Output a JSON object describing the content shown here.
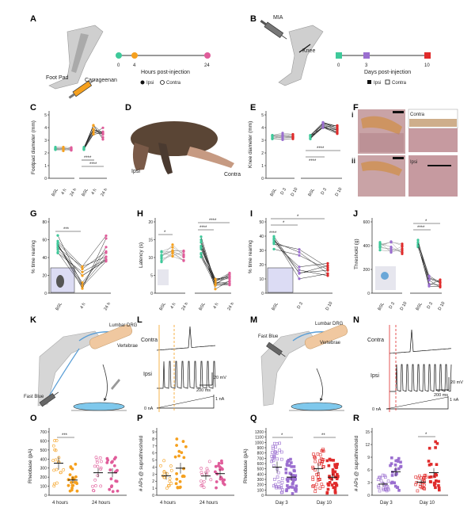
{
  "panel_letters": [
    "A",
    "B",
    "C",
    "D",
    "E",
    "F",
    "G",
    "H",
    "I",
    "J",
    "K",
    "L",
    "M",
    "N",
    "O",
    "P",
    "Q",
    "R"
  ],
  "panelA": {
    "foot_pad": "Foot Pad",
    "carrageenan": "Carrageenan",
    "ticks": [
      "0",
      "4",
      "24"
    ],
    "axis": "Hours post-injection",
    "ipsi": "Ipsi",
    "contra": "Contra"
  },
  "panelB": {
    "mia": "MIA",
    "knee": "Knee",
    "ticks": [
      "0",
      "3",
      "10"
    ],
    "axis": "Days post-injection",
    "ipsi": "Ipsi",
    "contra": "Contra"
  },
  "panelC": {
    "ylabel": "Footpad diameter (mm)",
    "yticks": [
      "0",
      "1",
      "2",
      "3",
      "4",
      "5"
    ],
    "xticks": [
      "BSL",
      "4 h",
      "24 h",
      "BSL",
      "4 h",
      "24 h"
    ],
    "stars": [
      "****",
      "****"
    ]
  },
  "panelD": {
    "ipsi": "Ipsi",
    "contra": "Contra"
  },
  "panelE": {
    "ylabel": "Knee diameter (mm)",
    "yticks": [
      "0",
      "1",
      "2",
      "3",
      "4",
      "5"
    ],
    "xticks": [
      "BSL",
      "D 3",
      "D 10",
      "BSL",
      "D 3",
      "D 10"
    ],
    "stars": [
      "****",
      "****"
    ]
  },
  "panelF": {
    "i": "i",
    "ii": "ii",
    "contra": "Contra",
    "ipsi": "Ipsi"
  },
  "panelG": {
    "ylabel": "% time rearing",
    "yticks": [
      "0",
      "20",
      "40",
      "60",
      "80"
    ],
    "xticks": [
      "BSL",
      "4 h",
      "24 h"
    ],
    "stars": "***"
  },
  "panelH": {
    "ylabel": "Latency (s)",
    "yticks": [
      "0",
      "5",
      "10",
      "15",
      "20"
    ],
    "xticks": [
      "BSL",
      "4 h",
      "24 h",
      "BSL",
      "4 h",
      "24 h"
    ],
    "stars": [
      "*",
      "****",
      "****"
    ]
  },
  "panelI": {
    "ylabel": "% time rearing",
    "yticks": [
      "0",
      "10",
      "20",
      "30",
      "40",
      "50"
    ],
    "xticks": [
      "BSL",
      "D 3",
      "D 10"
    ],
    "stars": [
      "****",
      "*",
      "*"
    ]
  },
  "panelJ": {
    "ylabel": "Threshold (g)",
    "yticks": [
      "0",
      "200",
      "400",
      "600"
    ],
    "xticks": [
      "BSL",
      "D 3",
      "D 10",
      "BSL",
      "D 3",
      "D 10"
    ],
    "stars": [
      "*",
      "****"
    ]
  },
  "panelK": {
    "lumbar_drg": "Lumbar DRG",
    "vertebrae": "Vertebrae",
    "fast_blue": "Fast Blue"
  },
  "panelL": {
    "contra": "Contra",
    "ipsi": "Ipsi",
    "scale_v": "20 mV",
    "scale_t": "200 ms",
    "zero": "0 nA",
    "one": "1 nA"
  },
  "panelM": {
    "lumbar_drg": "Lumbar DRG",
    "vertebrae": "Vertebrae",
    "fast_blue": "Fast Blue"
  },
  "panelN": {
    "contra": "Contra",
    "ipsi": "Ipsi",
    "scale_v": "20 mV",
    "scale_t": "200 ms",
    "zero": "0 nA",
    "one": "1 nA"
  },
  "panelO": {
    "ylabel": "Rheobase (pA)",
    "yticks": [
      "0",
      "100",
      "200",
      "300",
      "400",
      "500",
      "600",
      "700"
    ],
    "xticks": [
      "4 hours",
      "24 hours"
    ],
    "stars": "***"
  },
  "panelP": {
    "ylabel": "# APs @ suprathreshold",
    "yticks": [
      "0",
      "1",
      "2",
      "3",
      "4",
      "5",
      "6",
      "7",
      "8",
      "9"
    ],
    "xticks": [
      "4 hours",
      "24 hours"
    ]
  },
  "panelQ": {
    "ylabel": "Rheobase (pA)",
    "yticks": [
      "0",
      "100",
      "200",
      "300",
      "400",
      "500",
      "600",
      "700",
      "800",
      "900",
      "1000",
      "1100",
      "1200"
    ],
    "xticks": [
      "Day 3",
      "Day 10"
    ],
    "stars": [
      "*",
      "**"
    ]
  },
  "panelR": {
    "ylabel": "# APs @ suprathreshold",
    "yticks": [
      "0",
      "3",
      "6",
      "9",
      "12",
      "15"
    ],
    "xticks": [
      "Day 3",
      "Day 10"
    ],
    "stars": "*"
  },
  "colors": {
    "orange": "#f5a01e",
    "pink": "#e05c9a",
    "green": "#3ec99a",
    "purple": "#9b6fd0",
    "red": "#e02b2b",
    "teal": "#22c3a5"
  }
}
